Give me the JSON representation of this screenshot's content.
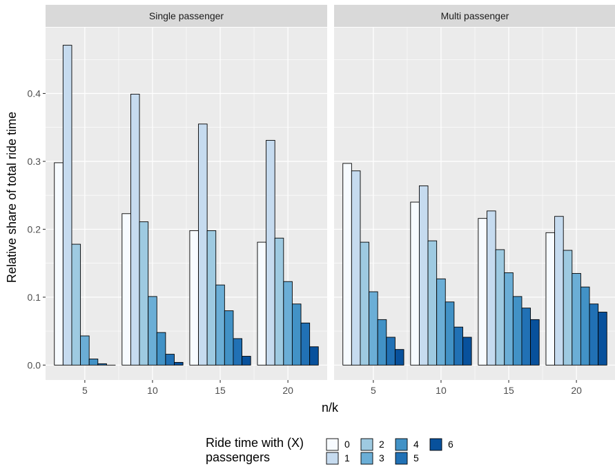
{
  "chart_data": {
    "type": "bar",
    "xlabel": "n/k",
    "ylabel": "Relative share of total ride time",
    "ylim": [
      -0.022,
      0.497
    ],
    "yticks": [
      "0.0",
      "0.1",
      "0.2",
      "0.3",
      "0.4"
    ],
    "xlim": [
      2.1,
      22.9
    ],
    "xticks": [
      "5",
      "10",
      "15",
      "20"
    ],
    "categories": [
      5,
      10,
      15,
      20
    ],
    "grid": true,
    "legend": {
      "title": "Ride time with (X)\npassengers",
      "position": "bottom",
      "groups": [
        "0",
        "1",
        "2",
        "3",
        "4",
        "5",
        "6"
      ]
    },
    "colors": [
      "#f7fbff",
      "#c6dbef",
      "#9ecae1",
      "#6baed6",
      "#4292c6",
      "#2171b5",
      "#08519c"
    ],
    "panels": [
      {
        "title": "Single passenger",
        "series": [
          {
            "name": "0",
            "values": [
              0.298,
              0.223,
              0.198,
              0.181
            ]
          },
          {
            "name": "1",
            "values": [
              0.471,
              0.399,
              0.355,
              0.331
            ]
          },
          {
            "name": "2",
            "values": [
              0.178,
              0.211,
              0.198,
              0.187
            ]
          },
          {
            "name": "3",
            "values": [
              0.043,
              0.101,
              0.118,
              0.123
            ]
          },
          {
            "name": "4",
            "values": [
              0.009,
              0.048,
              0.08,
              0.09
            ]
          },
          {
            "name": "5",
            "values": [
              0.002,
              0.016,
              0.039,
              0.062
            ]
          },
          {
            "name": "6",
            "values": [
              0.0,
              0.004,
              0.013,
              0.027
            ]
          }
        ]
      },
      {
        "title": "Multi passenger",
        "series": [
          {
            "name": "0",
            "values": [
              0.297,
              0.24,
              0.216,
              0.195
            ]
          },
          {
            "name": "1",
            "values": [
              0.286,
              0.264,
              0.227,
              0.219
            ]
          },
          {
            "name": "2",
            "values": [
              0.181,
              0.183,
              0.17,
              0.169
            ]
          },
          {
            "name": "3",
            "values": [
              0.108,
              0.127,
              0.136,
              0.135
            ]
          },
          {
            "name": "4",
            "values": [
              0.067,
              0.093,
              0.101,
              0.115
            ]
          },
          {
            "name": "5",
            "values": [
              0.041,
              0.056,
              0.084,
              0.09
            ]
          },
          {
            "name": "6",
            "values": [
              0.023,
              0.041,
              0.067,
              0.078
            ]
          }
        ]
      }
    ]
  }
}
